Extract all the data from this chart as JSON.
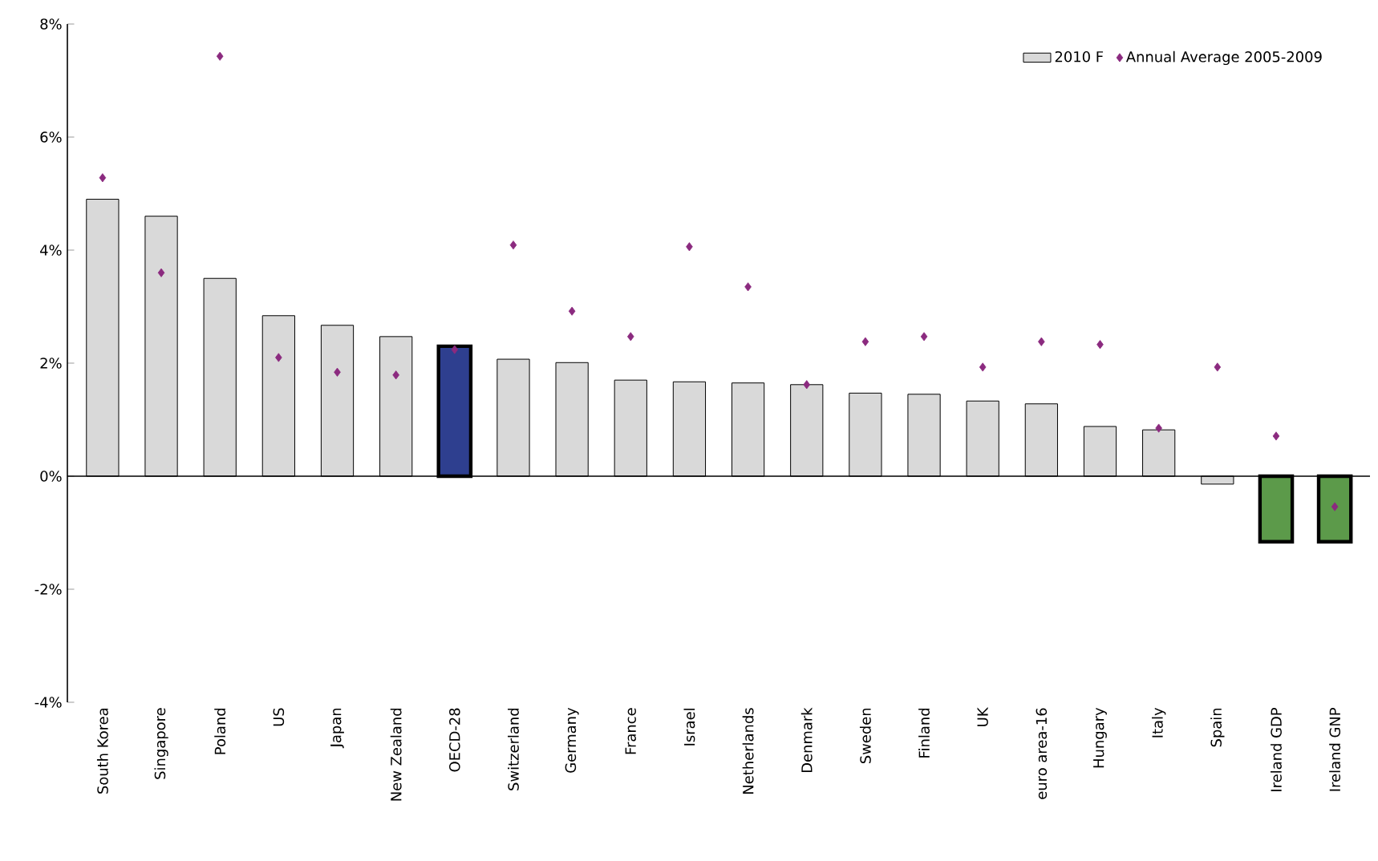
{
  "chart_data": {
    "type": "bar",
    "categories": [
      "South Korea",
      "Singapore",
      "Poland",
      "US",
      "Japan",
      "New Zealand",
      "OECD-28",
      "Switzerland",
      "Germany",
      "France",
      "Israel",
      "Netherlands",
      "Denmark",
      "Sweden",
      "Finland",
      "UK",
      "euro area-16",
      "Hungary",
      "Italy",
      "Spain",
      "Ireland GDP",
      "Ireland GNP"
    ],
    "series": [
      {
        "name": "2010 F",
        "color": "#d9d9d9",
        "colors": [
          "#d9d9d9",
          "#d9d9d9",
          "#d9d9d9",
          "#d9d9d9",
          "#d9d9d9",
          "#d9d9d9",
          "#2e3f8f",
          "#d9d9d9",
          "#d9d9d9",
          "#d9d9d9",
          "#d9d9d9",
          "#d9d9d9",
          "#d9d9d9",
          "#d9d9d9",
          "#d9d9d9",
          "#d9d9d9",
          "#d9d9d9",
          "#d9d9d9",
          "#d9d9d9",
          "#d9d9d9",
          "#5c9a4a",
          "#5c9a4a"
        ],
        "values": [
          4.9,
          4.6,
          3.5,
          2.84,
          2.67,
          2.47,
          2.3,
          2.07,
          2.01,
          1.7,
          1.67,
          1.65,
          1.62,
          1.47,
          1.45,
          1.33,
          1.28,
          0.88,
          0.82,
          -0.14,
          -1.16,
          -1.16
        ]
      },
      {
        "name": "Annual Average 2005-2009",
        "type": "scatter",
        "color": "#8b2a7f",
        "marker": "diamond",
        "values": [
          5.28,
          3.6,
          7.43,
          2.1,
          1.84,
          1.79,
          2.24,
          4.09,
          2.92,
          2.47,
          4.06,
          3.35,
          1.62,
          2.38,
          2.47,
          1.93,
          2.38,
          2.33,
          0.85,
          1.93,
          0.71,
          -0.54
        ]
      }
    ],
    "ylim": [
      -4,
      8
    ],
    "yticks": [
      {
        "value": -4,
        "label": "-4%"
      },
      {
        "value": -2,
        "label": "-2%"
      },
      {
        "value": 0,
        "label": "0%"
      },
      {
        "value": 2,
        "label": "2%"
      },
      {
        "value": 4,
        "label": "4%"
      },
      {
        "value": 6,
        "label": "6%"
      },
      {
        "value": 8,
        "label": "8%"
      }
    ],
    "legend": "top right"
  }
}
